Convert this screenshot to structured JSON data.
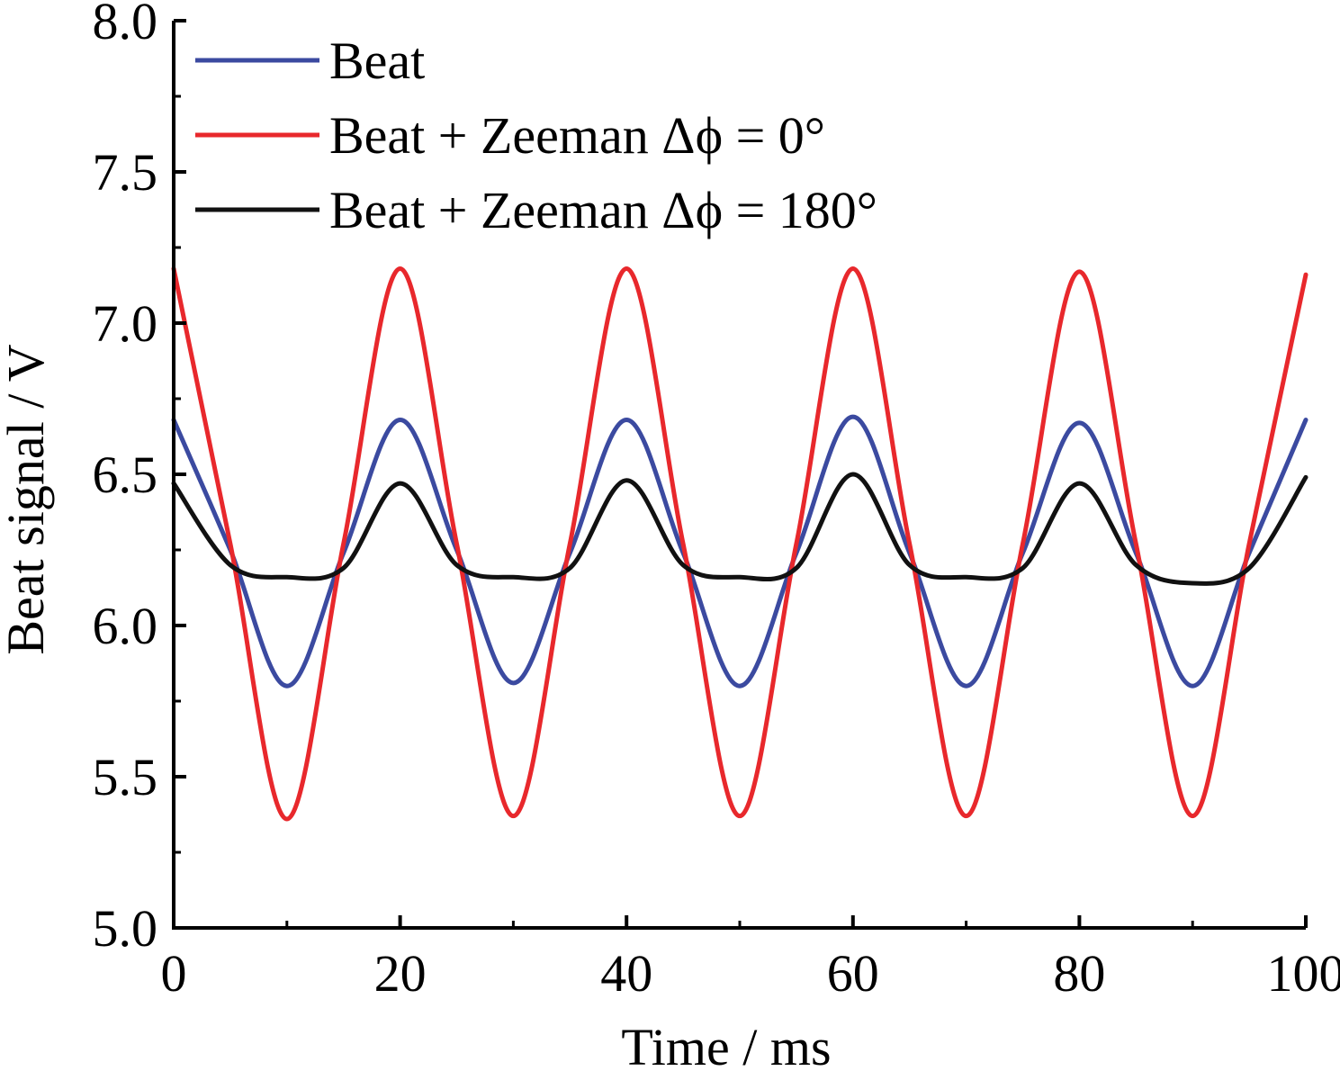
{
  "chart_data": {
    "type": "line",
    "title": "",
    "xlabel": "Time / ms",
    "ylabel": "Beat signal / V",
    "xlim": [
      0,
      100
    ],
    "ylim": [
      5.0,
      8.0
    ],
    "x_ticks": [
      "0",
      "20",
      "40",
      "60",
      "80",
      "100"
    ],
    "y_ticks": [
      "5.0",
      "5.5",
      "6.0",
      "6.5",
      "7.0",
      "7.5",
      "8.0"
    ],
    "grid": false,
    "legend_position": "top-left",
    "x": [
      0,
      5,
      10,
      15,
      20,
      25,
      30,
      35,
      40,
      45,
      50,
      55,
      60,
      65,
      70,
      75,
      80,
      85,
      90,
      95,
      100
    ],
    "series": [
      {
        "name": "Beat",
        "color": "#3b4aa0",
        "values": [
          6.68,
          6.25,
          5.8,
          6.24,
          6.68,
          6.25,
          5.81,
          6.24,
          6.68,
          6.24,
          5.8,
          6.24,
          6.69,
          6.24,
          5.8,
          6.24,
          6.67,
          6.24,
          5.8,
          6.24,
          6.68
        ]
      },
      {
        "name": "Beat + Zeeman Δϕ = 0°",
        "color": "#e8282c",
        "values": [
          7.18,
          6.27,
          5.36,
          6.27,
          7.18,
          6.27,
          5.37,
          6.27,
          7.18,
          6.27,
          5.37,
          6.27,
          7.18,
          6.27,
          5.37,
          6.27,
          7.17,
          6.27,
          5.37,
          6.27,
          7.16
        ]
      },
      {
        "name": "Beat + Zeeman Δϕ = 180°",
        "color": "#111111",
        "values": [
          6.47,
          6.2,
          6.16,
          6.19,
          6.47,
          6.2,
          6.16,
          6.19,
          6.48,
          6.2,
          6.16,
          6.19,
          6.5,
          6.2,
          6.16,
          6.19,
          6.47,
          6.2,
          6.14,
          6.19,
          6.49
        ]
      }
    ]
  }
}
